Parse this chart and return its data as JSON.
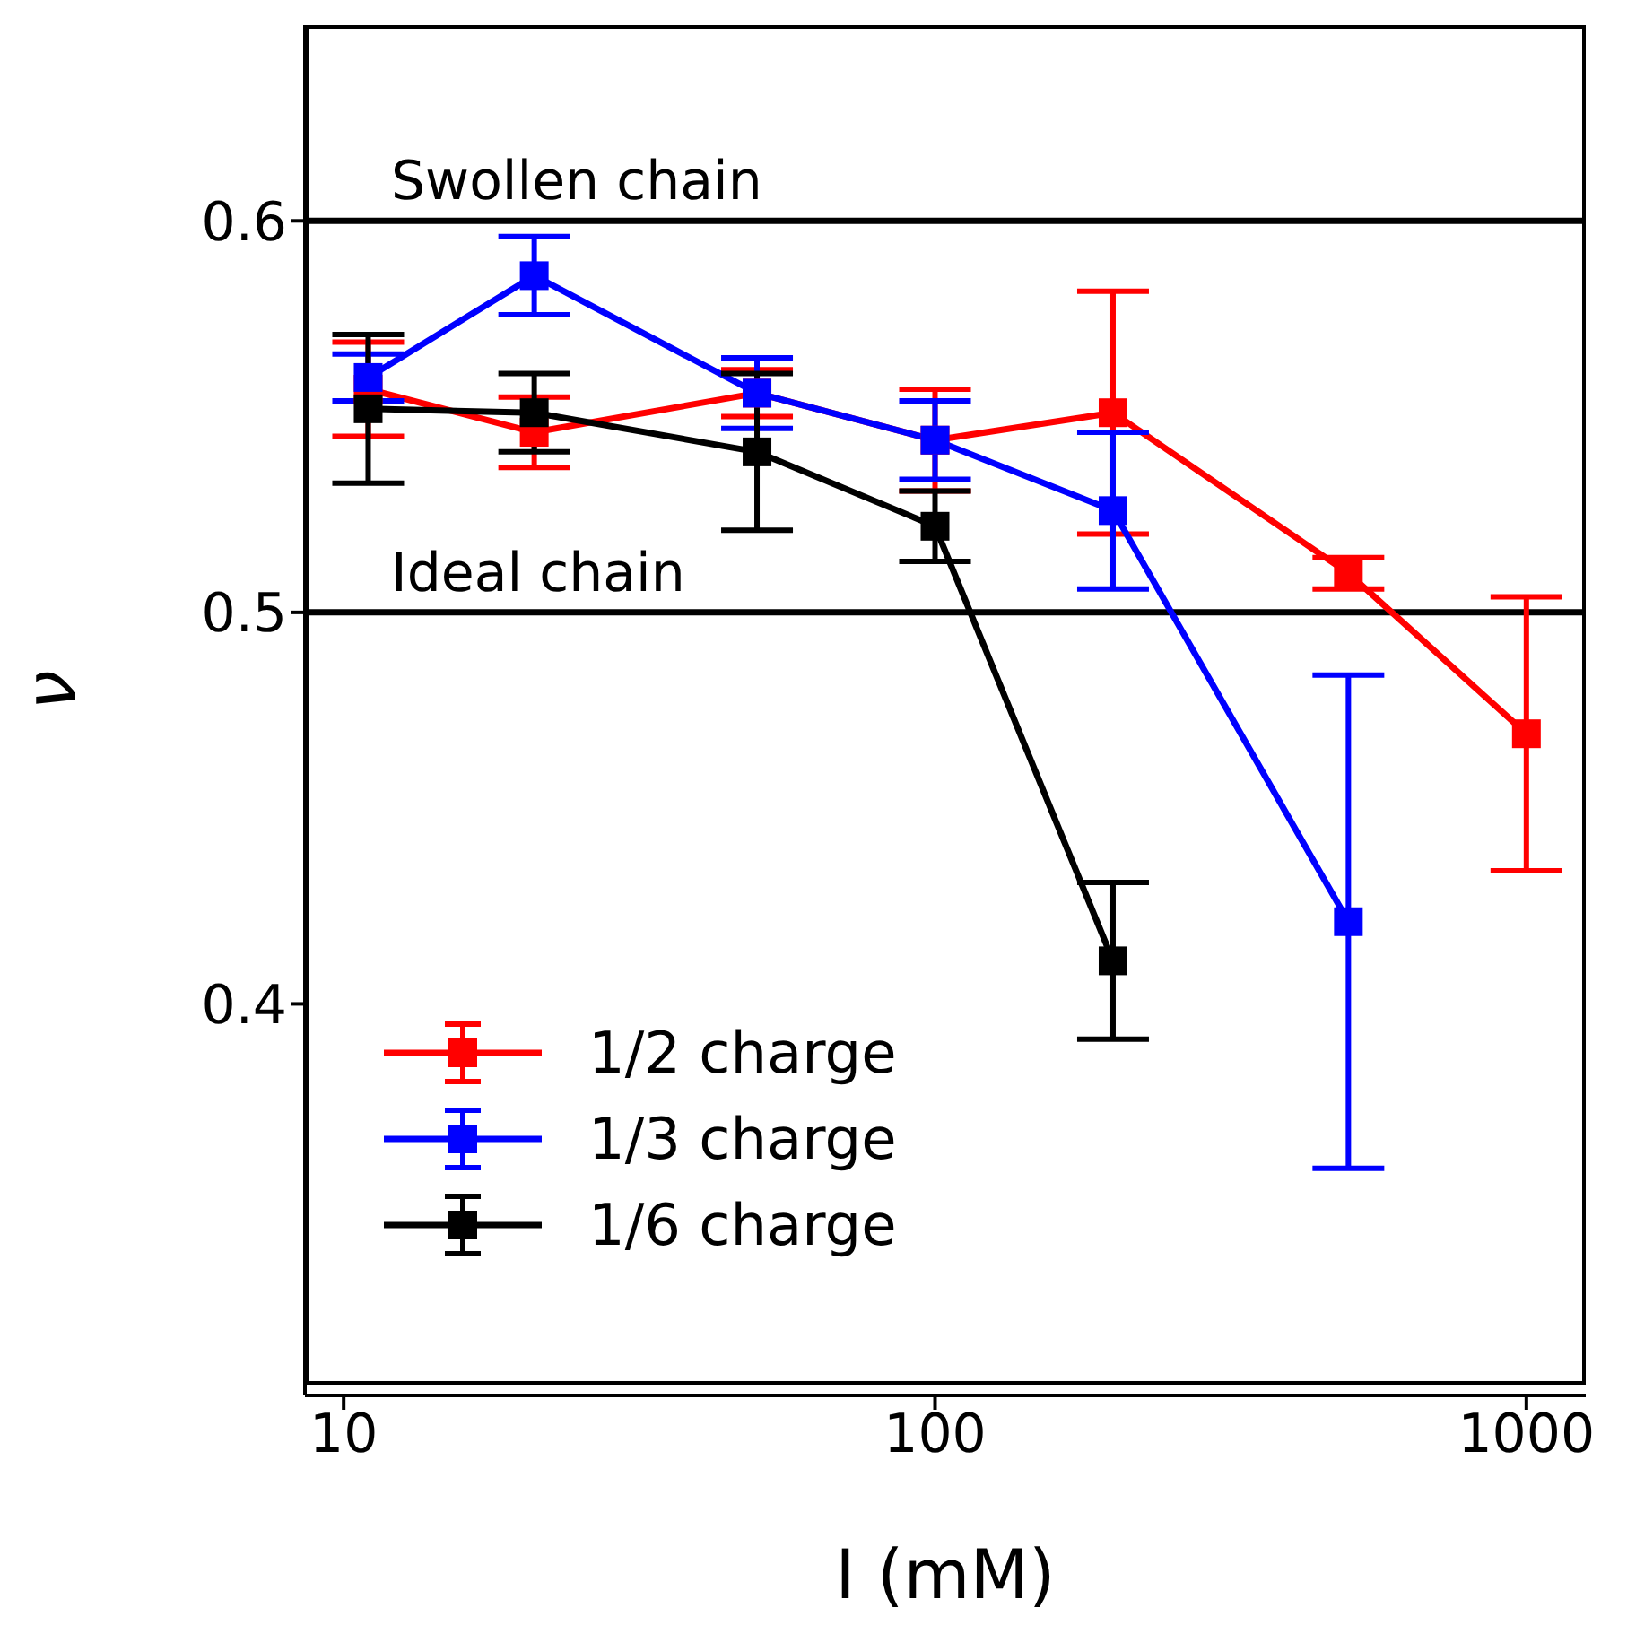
{
  "chart_data": {
    "type": "line",
    "xlabel": "I (mM)",
    "ylabel": "ν",
    "log": "x",
    "marker": "square",
    "line_style": "solid",
    "legend": "bottom left",
    "grid": false,
    "x": [
      11,
      21,
      50,
      100,
      200,
      500,
      1000
    ],
    "xlim": [
      8.6,
      1260
    ],
    "xticks": [
      10,
      100,
      1000
    ],
    "ylim": [
      0.3,
      0.65
    ],
    "yticks": [
      0.4,
      0.5,
      0.6
    ],
    "series": [
      {
        "name": "1/2 charge",
        "color": "#ff0000",
        "values": [
          0.557,
          0.546,
          0.556,
          0.544,
          0.551,
          0.51,
          0.469
        ],
        "errors": [
          0.012,
          0.009,
          0.006,
          0.013,
          0.031,
          0.004,
          0.035
        ]
      },
      {
        "name": "1/3 charge",
        "color": "#0000ff",
        "values": [
          0.56,
          0.586,
          0.556,
          0.544,
          0.526,
          0.421,
          null
        ],
        "errors": [
          0.006,
          0.01,
          0.009,
          0.01,
          0.02,
          0.063,
          null
        ]
      },
      {
        "name": "1/6 charge",
        "color": "#000000",
        "values": [
          0.552,
          0.551,
          0.541,
          0.522,
          0.411,
          null,
          null
        ],
        "errors": [
          0.019,
          0.01,
          0.02,
          0.009,
          0.02,
          null,
          null
        ]
      }
    ],
    "ref_lines": [
      {
        "axis": "y",
        "value": 0.6,
        "label": "Swollen chain",
        "color": "#000000"
      },
      {
        "axis": "y",
        "value": 0.5,
        "label": "Ideal chain",
        "color": "#000000"
      }
    ]
  }
}
